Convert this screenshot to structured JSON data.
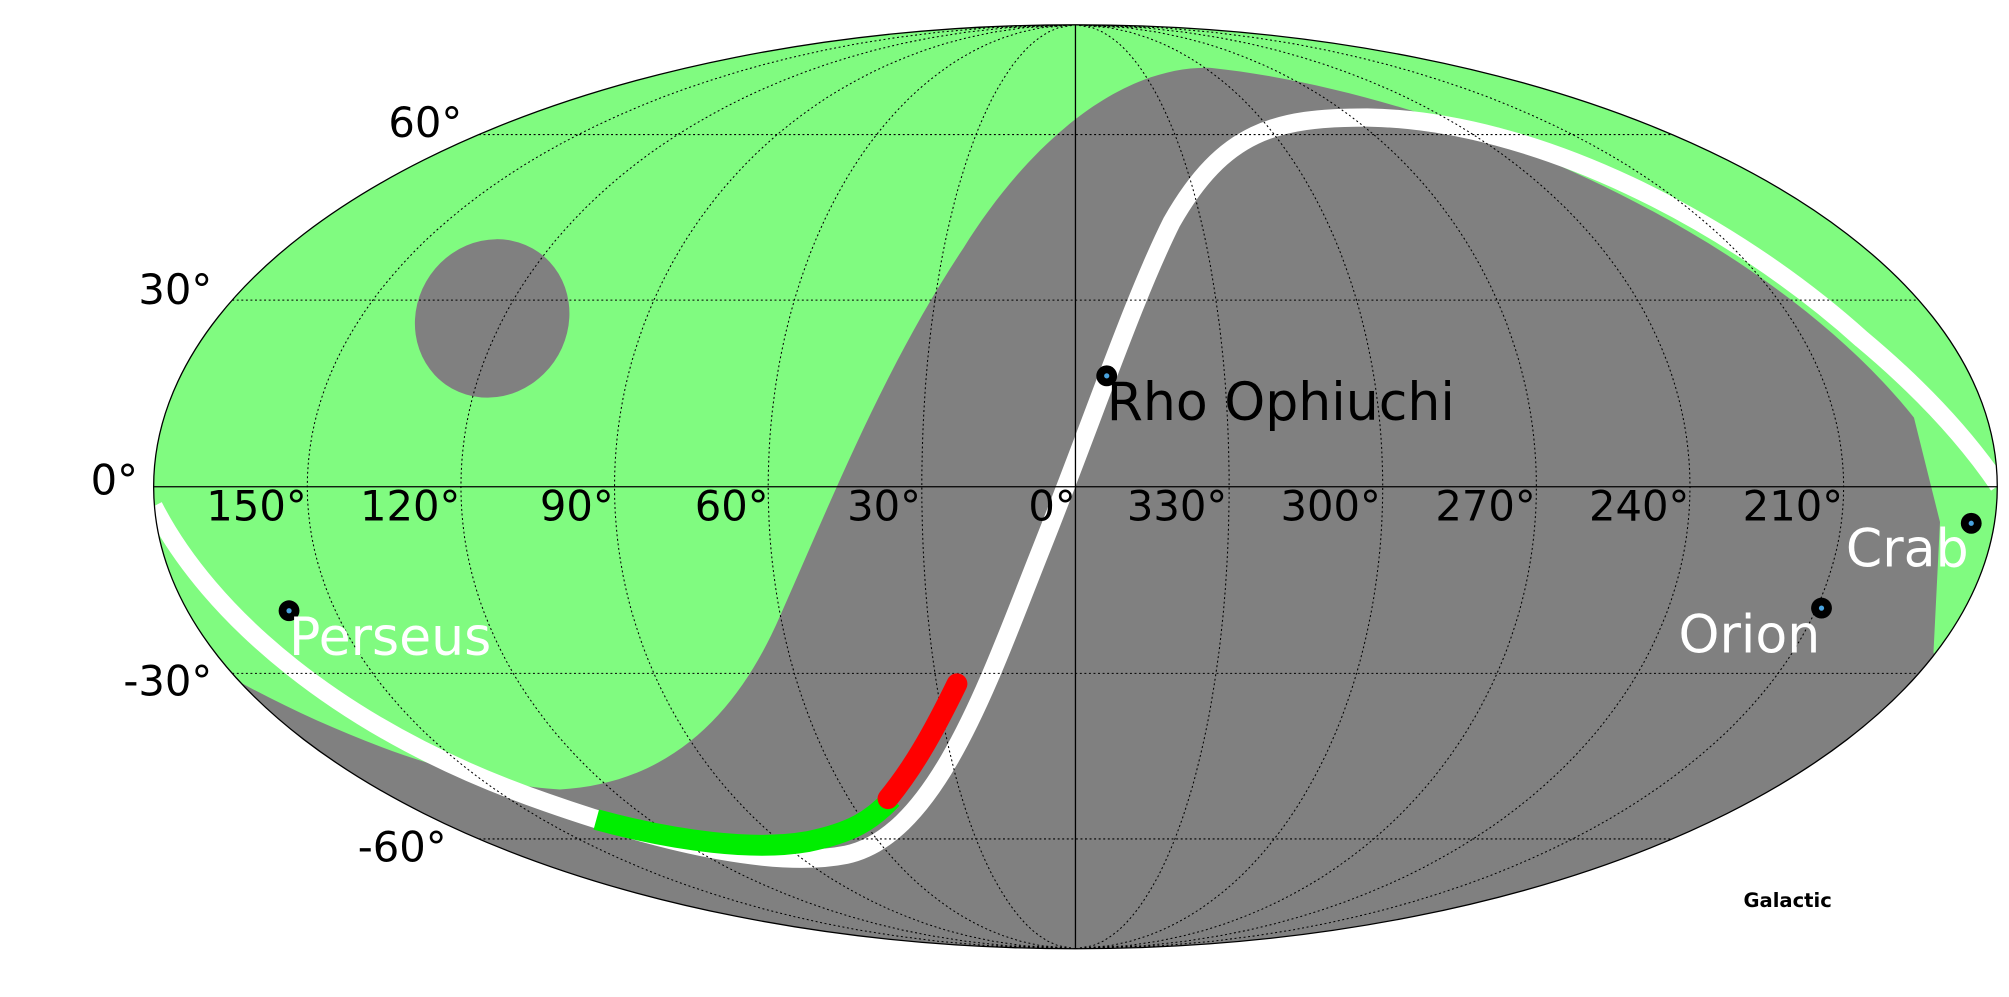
{
  "graticule": {
    "longitude_labels": [
      "150°",
      "120°",
      "90°",
      "60°",
      "30°",
      "0°",
      "330°",
      "300°",
      "270°",
      "240°",
      "210°"
    ],
    "latitude_labels": [
      "60°",
      "30°",
      "0°",
      "-30°",
      "-60°"
    ]
  },
  "sources": [
    {
      "name": "Rho Ophiuchi"
    },
    {
      "name": "Perseus"
    },
    {
      "name": "Orion"
    },
    {
      "name": "Crab"
    }
  ],
  "frame_label": "Galactic"
}
